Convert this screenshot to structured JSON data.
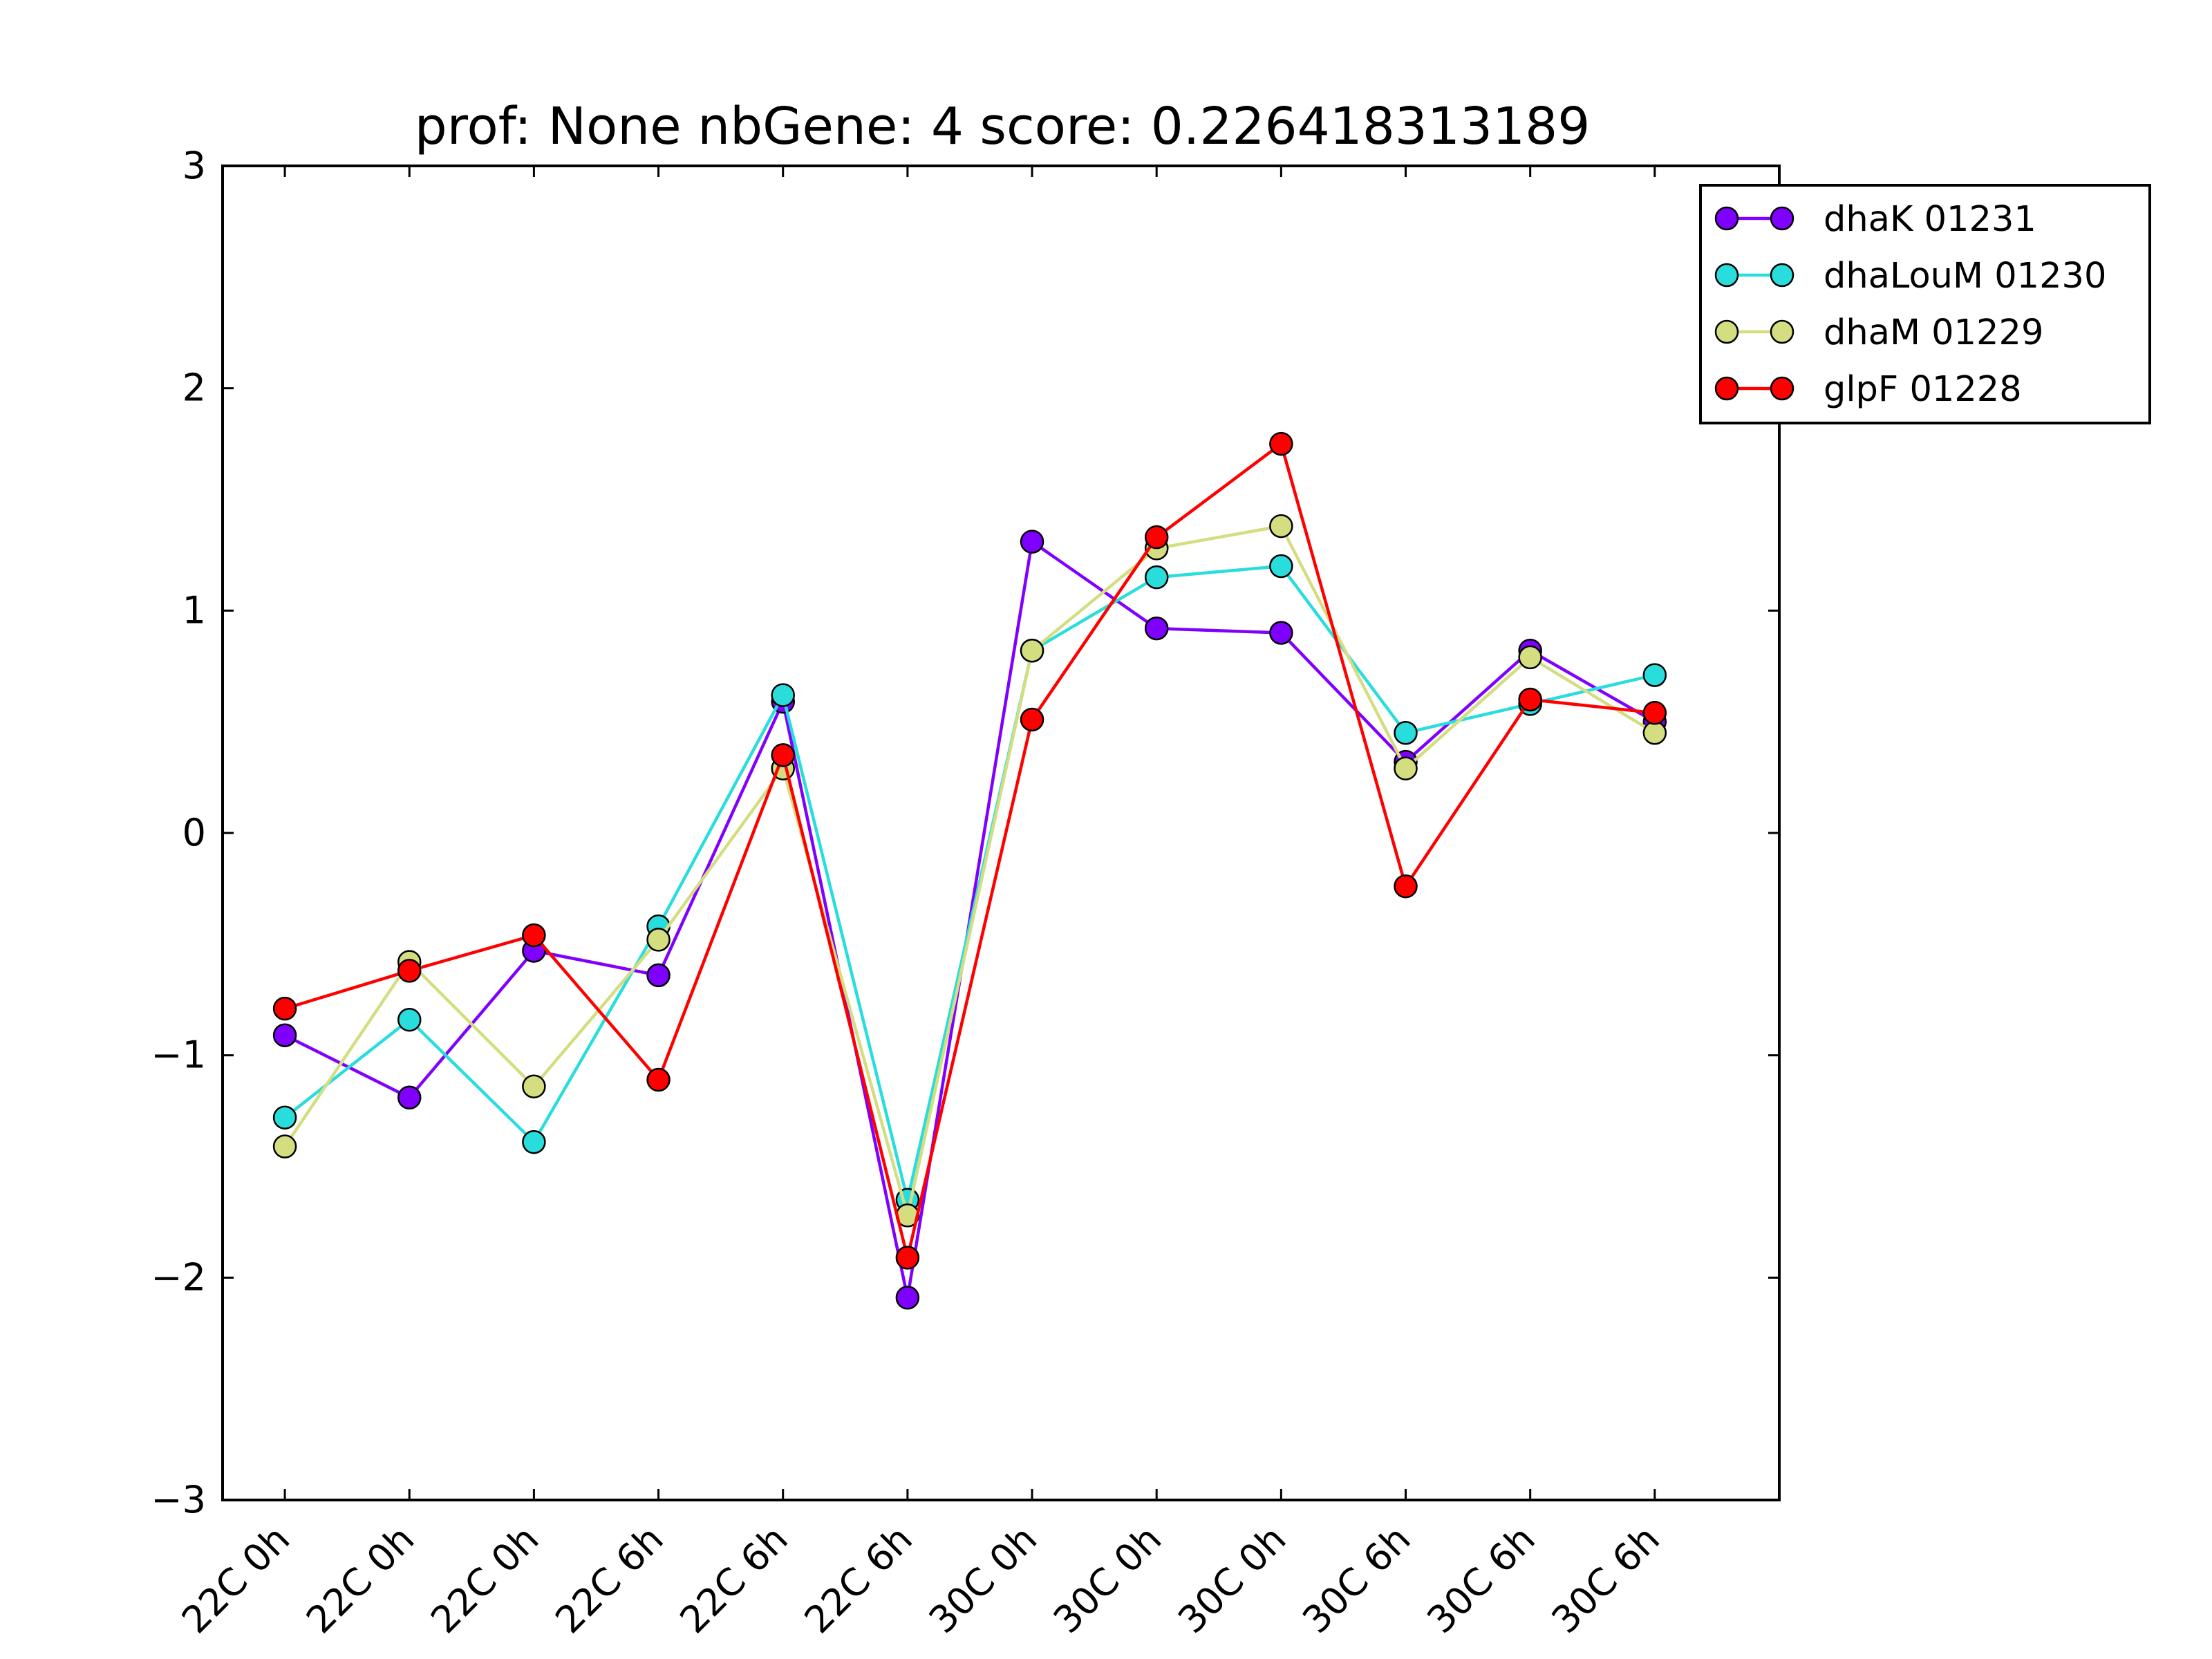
{
  "chart_data": {
    "type": "line",
    "title": "prof: None nbGene: 4 score: 0.226418313189",
    "xlabel": "",
    "ylabel": "",
    "categories": [
      "22C 0h",
      "22C 0h",
      "22C 0h",
      "22C 6h",
      "22C 6h",
      "22C 6h",
      "30C 0h",
      "30C 0h",
      "30C 0h",
      "30C 6h",
      "30C 6h",
      "30C 6h"
    ],
    "ylim": [
      -3,
      3
    ],
    "yticks": [
      -3,
      -2,
      -1,
      0,
      1,
      2,
      3
    ],
    "ytick_labels": [
      "−3",
      "−2",
      "−1",
      "0",
      "1",
      "2",
      "3"
    ],
    "grid": false,
    "legend_position": "top-right, outside axes",
    "series": [
      {
        "name": "dhaK 01231",
        "color": "#8000ff",
        "values": [
          -0.91,
          -1.19,
          -0.53,
          -0.64,
          0.59,
          -2.09,
          1.31,
          0.92,
          0.9,
          0.32,
          0.82,
          0.5
        ]
      },
      {
        "name": "dhaLouM 01230",
        "color": "#2adddd",
        "values": [
          -1.28,
          -0.84,
          -1.39,
          -0.42,
          0.62,
          -1.65,
          0.82,
          1.15,
          1.2,
          0.45,
          0.58,
          0.71
        ]
      },
      {
        "name": "dhaM 01229",
        "color": "#d4dd80",
        "values": [
          -1.41,
          -0.58,
          -1.14,
          -0.48,
          0.29,
          -1.72,
          0.82,
          1.28,
          1.38,
          0.29,
          0.79,
          0.45
        ]
      },
      {
        "name": "glpF 01228",
        "color": "#ff0000",
        "values": [
          -0.79,
          -0.62,
          -0.46,
          -1.11,
          0.35,
          -1.91,
          0.51,
          1.33,
          1.75,
          -0.24,
          0.6,
          0.54
        ]
      }
    ]
  }
}
